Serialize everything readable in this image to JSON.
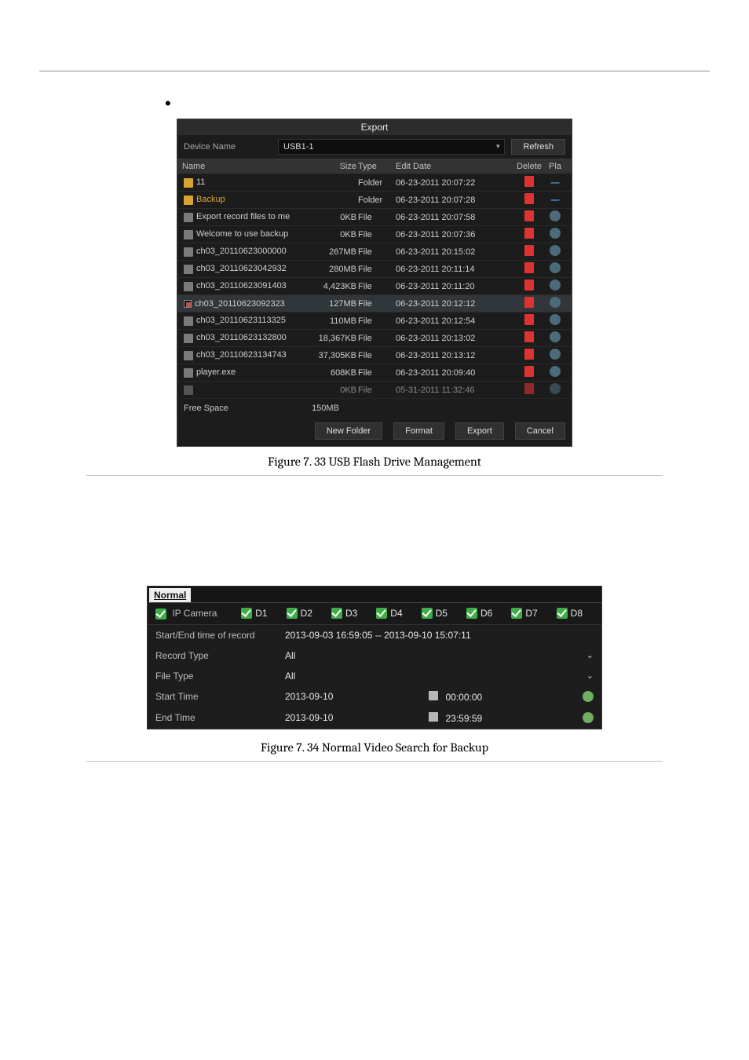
{
  "export": {
    "title": "Export",
    "device_label": "Device Name",
    "device_value": "USB1-1",
    "refresh": "Refresh",
    "columns": {
      "name": "Name",
      "size": "Size",
      "type": "Type",
      "date": "Edit Date",
      "del": "Delete",
      "play": "Pla"
    },
    "rows": [
      {
        "icon": "folder",
        "name": "11",
        "size": "",
        "type": "Folder",
        "date": "06-23-2011 20:07:22",
        "play": "dash"
      },
      {
        "icon": "folder",
        "name": "Backup",
        "size": "",
        "type": "Folder",
        "date": "06-23-2011 20:07:28",
        "play": "dash",
        "hl": true
      },
      {
        "icon": "file",
        "name": "Export record files to me",
        "size": "0KB",
        "type": "File",
        "date": "06-23-2011 20:07:58",
        "play": "play"
      },
      {
        "icon": "file",
        "name": "Welcome to use backup",
        "size": "0KB",
        "type": "File",
        "date": "06-23-2011 20:07:36",
        "play": "play"
      },
      {
        "icon": "file",
        "name": "ch03_20110623000000",
        "size": "267MB",
        "type": "File",
        "date": "06-23-2011 20:15:02",
        "play": "play"
      },
      {
        "icon": "file",
        "name": "ch03_20110623042932",
        "size": "280MB",
        "type": "File",
        "date": "06-23-2011 20:11:14",
        "play": "play"
      },
      {
        "icon": "file",
        "name": "ch03_20110623091403",
        "size": "4,423KB",
        "type": "File",
        "date": "06-23-2011 20:11:20",
        "play": "play"
      },
      {
        "icon": "chk",
        "name": "ch03_20110623092323",
        "size": "127MB",
        "type": "File",
        "date": "06-23-2011 20:12:12",
        "play": "play",
        "sel": true
      },
      {
        "icon": "file",
        "name": "ch03_20110623113325",
        "size": "110MB",
        "type": "File",
        "date": "06-23-2011 20:12:54",
        "play": "play"
      },
      {
        "icon": "file",
        "name": "ch03_20110623132800",
        "size": "18,367KB",
        "type": "File",
        "date": "06-23-2011 20:13:02",
        "play": "play"
      },
      {
        "icon": "file",
        "name": "ch03_20110623134743",
        "size": "37,305KB",
        "type": "File",
        "date": "06-23-2011 20:13:12",
        "play": "play"
      },
      {
        "icon": "file",
        "name": "player.exe",
        "size": "608KB",
        "type": "File",
        "date": "06-23-2011 20:09:40",
        "play": "play"
      },
      {
        "icon": "file",
        "name": "",
        "size": "0KB",
        "type": "File",
        "date": "05-31-2011 11:32:46",
        "play": "play",
        "fade": true
      }
    ],
    "free_label": "Free Space",
    "free_value": "150MB",
    "buttons": {
      "newfolder": "New Folder",
      "format": "Format",
      "export": "Export",
      "cancel": "Cancel"
    }
  },
  "caption1": "Figure 7. 33  USB Flash Drive Management",
  "normal": {
    "tab": "Normal",
    "ip_label": "IP Camera",
    "cams": [
      "D1",
      "D2",
      "D3",
      "D4",
      "D5",
      "D6",
      "D7",
      "D8"
    ],
    "setime_label": "Start/End time of record",
    "setime_value": "2013-09-03 16:59:05 -- 2013-09-10 15:07:11",
    "rectype_label": "Record Type",
    "rectype_value": "All",
    "filetype_label": "File Type",
    "filetype_value": "All",
    "start_label": "Start Time",
    "start_date": "2013-09-10",
    "start_time": "00:00:00",
    "end_label": "End Time",
    "end_date": "2013-09-10",
    "end_time": "23:59:59"
  },
  "caption2": "Figure 7. 34  Normal Video Search for Backup"
}
